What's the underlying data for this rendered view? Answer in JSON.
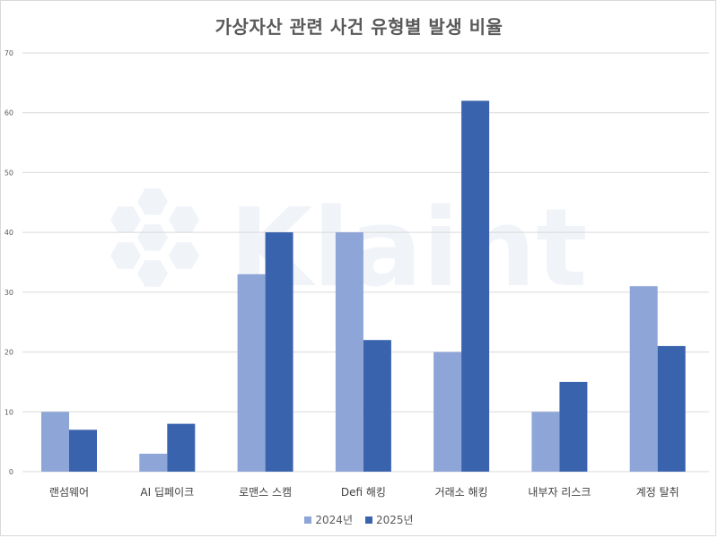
{
  "chart_data": {
    "type": "bar",
    "title": "가상자산 관련 사건 유형별 발생 비율",
    "categories": [
      "랜섬웨어",
      "AI 딥페이크",
      "로맨스 스캠",
      "Defi 해킹",
      "거래소 해킹",
      "내부자 리스크",
      "계정 탈취"
    ],
    "series": [
      {
        "name": "2024년",
        "values": [
          10,
          3,
          33,
          40,
          20,
          10,
          31
        ],
        "color": "#8EA5D8"
      },
      {
        "name": "2025년",
        "values": [
          7,
          8,
          40,
          22,
          62,
          15,
          21
        ],
        "color": "#3A63AE"
      }
    ],
    "ylim": [
      0,
      70
    ],
    "yticks": [
      0,
      10,
      20,
      30,
      40,
      50,
      60,
      70
    ],
    "xlabel": "",
    "ylabel": "",
    "grid": true,
    "legend_position": "bottom",
    "watermark": "Klaint"
  }
}
